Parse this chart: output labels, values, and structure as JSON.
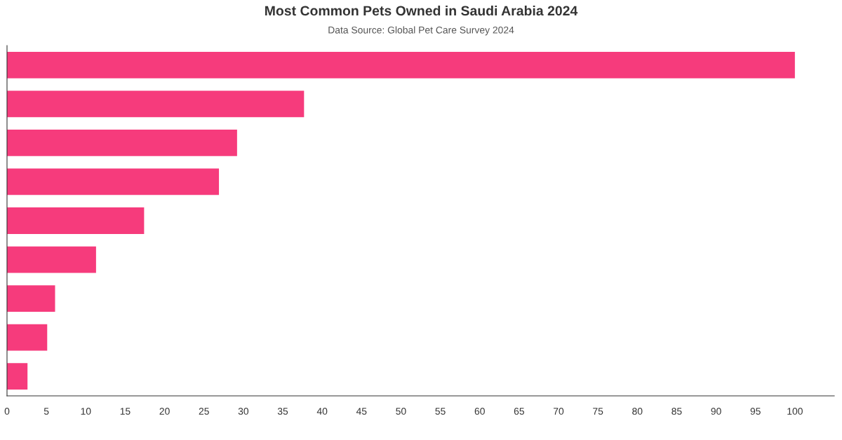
{
  "chart_data": {
    "type": "bar",
    "orientation": "horizontal",
    "title": "Most Common Pets Owned in Saudi Arabia 2024",
    "subtitle": "Data Source: Global Pet Care Survey 2024",
    "categories": [
      null,
      null,
      null,
      null,
      null,
      null,
      null,
      null,
      null
    ],
    "values": [
      100,
      37.7,
      29.2,
      26.9,
      17.4,
      11.3,
      6.1,
      5.1,
      2.6
    ],
    "color": "#f63b7c",
    "xlim": [
      0,
      105
    ],
    "xticks": [
      0,
      5,
      10,
      15,
      20,
      25,
      30,
      35,
      40,
      45,
      50,
      55,
      60,
      65,
      70,
      75,
      80,
      85,
      90,
      95,
      100
    ],
    "grid": false
  }
}
